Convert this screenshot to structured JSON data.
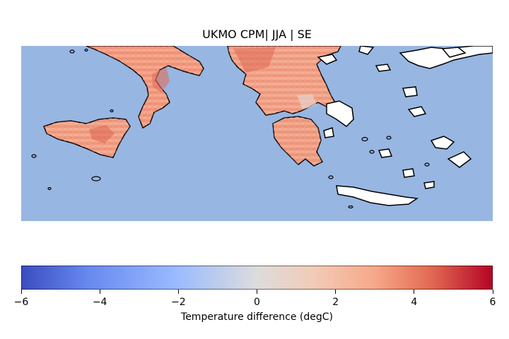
{
  "title": "UKMO CPM| JJA | SE",
  "colorbar": {
    "label": "Temperature difference (degC)",
    "min": -6,
    "max": 6,
    "ticks": [
      "−6",
      "−4",
      "−2",
      "0",
      "2",
      "4",
      "6"
    ],
    "colormap": [
      "#3b4cc0",
      "#6788ee",
      "#9abbff",
      "#c9d7f0",
      "#edd1c2",
      "#f7a889",
      "#e26952",
      "#b40426"
    ]
  },
  "map": {
    "sea_color": "#97b6e2",
    "unmodelled_land_color": "#ffffff",
    "coastline_color": "#000000",
    "regions": [
      {
        "name": "Southern Italy",
        "typical_difference": 3.5
      },
      {
        "name": "Sicily",
        "typical_difference": 3.8
      },
      {
        "name": "Albania",
        "typical_difference": 3.5
      },
      {
        "name": "Mainland Greece",
        "typical_difference": 2.8
      },
      {
        "name": "Peloponnese",
        "typical_difference": 3.0
      }
    ]
  }
}
